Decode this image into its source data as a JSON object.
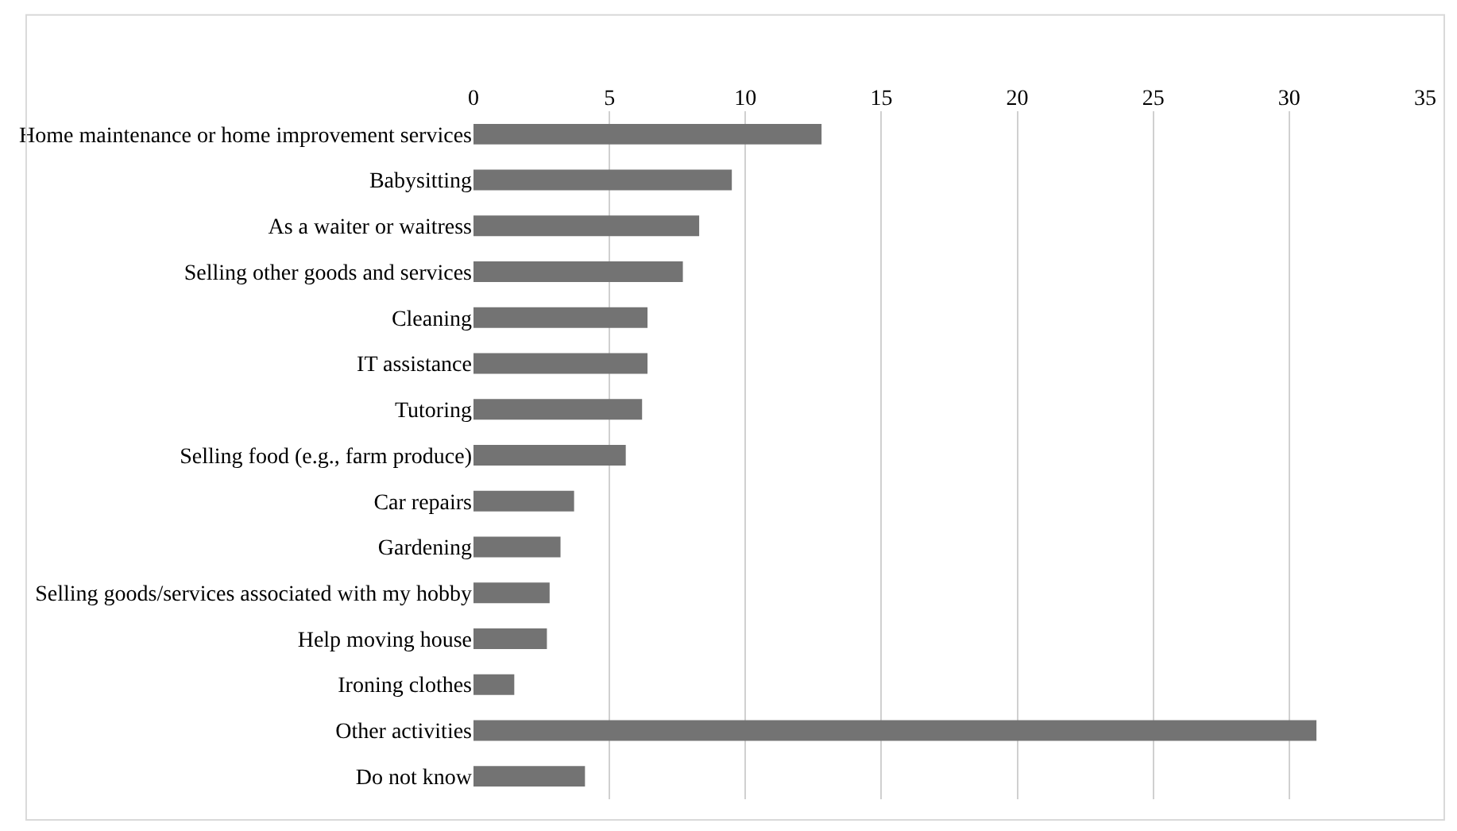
{
  "chart_data": {
    "type": "bar",
    "orientation": "horizontal",
    "categories": [
      "Home maintenance or home improvement services",
      "Babysitting",
      "As a waiter or waitress",
      "Selling other goods and services",
      "Cleaning",
      "IT assistance",
      "Tutoring",
      "Selling food (e.g., farm produce)",
      "Car repairs",
      "Gardening",
      "Selling goods/services associated with my hobby",
      "Help moving house",
      "Ironing clothes",
      "Other activities",
      "Do not know"
    ],
    "values": [
      12.8,
      9.5,
      8.3,
      7.7,
      6.4,
      6.4,
      6.2,
      5.6,
      3.7,
      3.2,
      2.8,
      2.7,
      1.5,
      31.0,
      4.1
    ],
    "color": "#737373",
    "xlim": [
      0,
      35
    ],
    "xticks": [
      0,
      5,
      10,
      15,
      20,
      25,
      30,
      35
    ],
    "grid": "x",
    "legend": false
  }
}
